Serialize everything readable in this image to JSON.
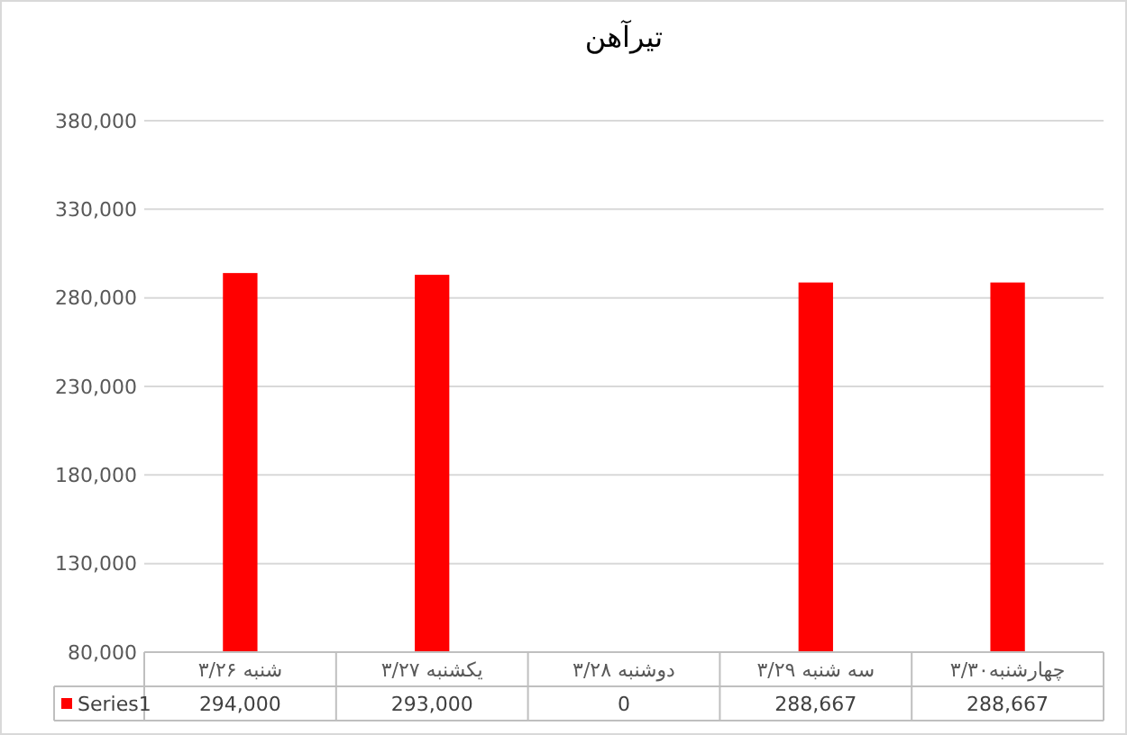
{
  "chart_data": {
    "type": "bar",
    "title": "تیرآهن",
    "categories": [
      "شنبه ۳/۲۶",
      "یکشنبه ۳/۲۷",
      "دوشنبه ۳/۲۸",
      "سه شنبه ۳/۲۹",
      "چهارشنبه۳/۳۰"
    ],
    "series": [
      {
        "name": "Series1",
        "color": "#ff0000",
        "values": [
          294000,
          293000,
          null,
          288667,
          288667
        ],
        "value_labels": [
          "294,000",
          "293,000",
          "0",
          "288,667",
          "288,667"
        ]
      }
    ],
    "ylim": [
      80000,
      380000
    ],
    "yticks": [
      {
        "value": 80000,
        "label": "80,000"
      },
      {
        "value": 130000,
        "label": "130,000"
      },
      {
        "value": 180000,
        "label": "180,000"
      },
      {
        "value": 230000,
        "label": "230,000"
      },
      {
        "value": 280000,
        "label": "280,000"
      },
      {
        "value": 330000,
        "label": "330,000"
      },
      {
        "value": 380000,
        "label": "380,000"
      }
    ],
    "grid": "y",
    "legend": "bottom"
  }
}
